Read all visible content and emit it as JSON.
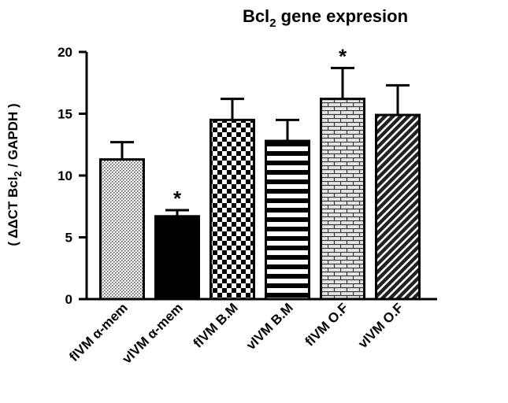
{
  "chart_data": {
    "type": "bar",
    "title_main": "Bcl",
    "title_sub": "2",
    "title_rest": " gene expresion",
    "ylabel_pre": "( ΔΔCT Bcl",
    "ylabel_sub": "2",
    "ylabel_post": " / GAPDH  )",
    "xlabel": "",
    "ylim": [
      0,
      20
    ],
    "yticks": [
      "0",
      "5",
      "10",
      "15",
      "20"
    ],
    "categories": [
      "fIVM  α-mem",
      "vIVM  α-mem",
      "fIVM  B.M",
      "vIVM  B.M",
      "fIVM O.F",
      "vIVM  O.F"
    ],
    "values": [
      11.3,
      6.7,
      14.5,
      12.8,
      16.2,
      14.9
    ],
    "errors": [
      1.4,
      0.5,
      1.7,
      1.7,
      2.5,
      2.4
    ],
    "significance": [
      "",
      "*",
      "",
      "",
      "*",
      ""
    ],
    "patterns": [
      "dots",
      "solid",
      "checker",
      "hstripes",
      "brick",
      "diagonal"
    ],
    "grid": false,
    "legend": "none",
    "colors": {
      "bar_stroke": "#000000",
      "fill_dark": "#000000",
      "fill_light": "#ffffff"
    }
  }
}
